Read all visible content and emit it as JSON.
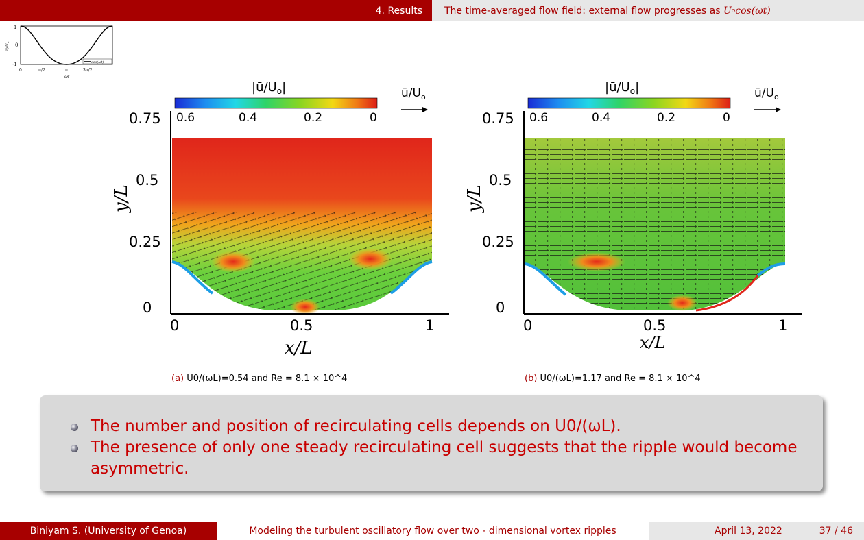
{
  "header": {
    "section": "4. Results",
    "title_prefix": "The time-averaged flow field: external flow progresses as ",
    "title_math": "U",
    "title_math_sub": "o",
    "title_math_tail": "cos(ωt)"
  },
  "thumbnail": {
    "ylabel": "ū/U",
    "ylabel_sub": "o",
    "xlabel": "ωt",
    "yticks": [
      "1",
      "0",
      "-1"
    ],
    "xticks": [
      "0",
      "π/2",
      "π",
      "3π/2"
    ],
    "legend": "cos(ωt)"
  },
  "panels": [
    {
      "colorbar_label": "|ū/U",
      "colorbar_label_sub": "o",
      "colorbar_label_tail": "|",
      "colorbar_ticks": [
        "0.6",
        "0.4",
        "0.2",
        "0"
      ],
      "arrow_label": "ū/U",
      "arrow_label_sub": "o",
      "yticks": [
        "0.75",
        "0.5",
        "0.25",
        "0"
      ],
      "xticks": [
        "0",
        "0.5",
        "1"
      ],
      "ylabel": "y/L",
      "xlabel": "x/L",
      "caption_tag": "(a)",
      "caption_text": "U0/(ωL)=0.54 and Re = 8.1 × 10^4"
    },
    {
      "colorbar_label": "|ū/U",
      "colorbar_label_sub": "o",
      "colorbar_label_tail": "|",
      "colorbar_ticks": [
        "0.6",
        "0.4",
        "0.2",
        "0"
      ],
      "arrow_label": "ū/U",
      "arrow_label_sub": "o",
      "yticks": [
        "0.75",
        "0.5",
        "0.25",
        "0"
      ],
      "xticks": [
        "0",
        "0.5",
        "1"
      ],
      "ylabel": "y/L",
      "xlabel": "x/L",
      "caption_tag": "(b)",
      "caption_text": "U0/(ωL)=1.17 and Re = 8.1 × 10^4"
    }
  ],
  "bullets": [
    "The number and position of recirculating cells depends on U0/(ωL).",
    "The presence of only one steady recirculating cell suggests that the ripple would become asymmetric."
  ],
  "footer": {
    "author": "Biniyam S.  (University of Genoa)",
    "talk_title": "Modeling the turbulent oscillatory flow over two - dimensional vortex ripples",
    "date": "April 13, 2022",
    "page": "37 / 46"
  },
  "colors": {
    "brand_red": "#a70000",
    "bullet_red": "#c80000",
    "field_red": "#e0261b",
    "field_green": "#35c832"
  }
}
